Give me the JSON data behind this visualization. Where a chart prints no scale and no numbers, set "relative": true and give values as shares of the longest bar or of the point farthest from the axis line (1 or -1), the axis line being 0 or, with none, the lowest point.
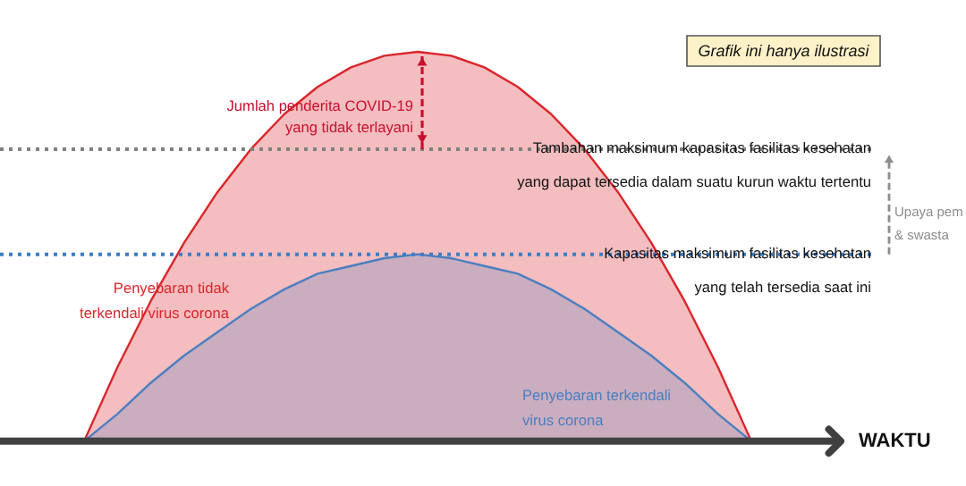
{
  "chart_data": {
    "type": "area",
    "relative": true,
    "xlabel": "WAKTU",
    "categories": [
      null,
      null,
      null,
      null,
      null,
      null,
      null,
      null,
      null,
      null,
      null,
      null,
      null,
      null,
      null,
      null,
      null,
      null,
      null,
      null,
      null
    ],
    "series": [
      {
        "name": "Penyebaran tidak\nterkendali virus corona",
        "color": "#d9262b",
        "values": [
          0,
          0.19,
          0.36,
          0.51,
          0.64,
          0.75,
          0.84,
          0.91,
          0.96,
          0.99,
          1,
          0.99,
          0.96,
          0.91,
          0.84,
          0.75,
          0.64,
          0.51,
          0.36,
          0.19,
          0
        ]
      },
      {
        "name": "Penyebaran terkendali\nvirus corona",
        "color": "#4a7fc1",
        "values": [
          0,
          0.07,
          0.15,
          0.22,
          0.28,
          0.34,
          0.39,
          0.43,
          0.45,
          0.47,
          0.48,
          0.47,
          0.45,
          0.43,
          0.39,
          0.34,
          0.28,
          0.22,
          0.15,
          0.07,
          0
        ]
      }
    ],
    "ref_lines": [
      {
        "axis": "y",
        "value": 0.75,
        "label": "Tambahan maksimum kapasitas fasilitas kesehatan\nyang dapat tersedia dalam suatu kurun waktu tertentu",
        "color": "#808080",
        "line_style": "dotted"
      },
      {
        "axis": "y",
        "value": 0.48,
        "label": "Kapasitas maksimum fasilitas kesehatan\nyang telah tersedia saat ini",
        "color": "#3e7cc4",
        "line_style": "dotted"
      }
    ],
    "annotations": [
      "Grafik ini hanya ilustrasi",
      "Jumlah penderita COVID-19\nyang tidak terlayani",
      "Upaya pem\n& swasta"
    ]
  }
}
